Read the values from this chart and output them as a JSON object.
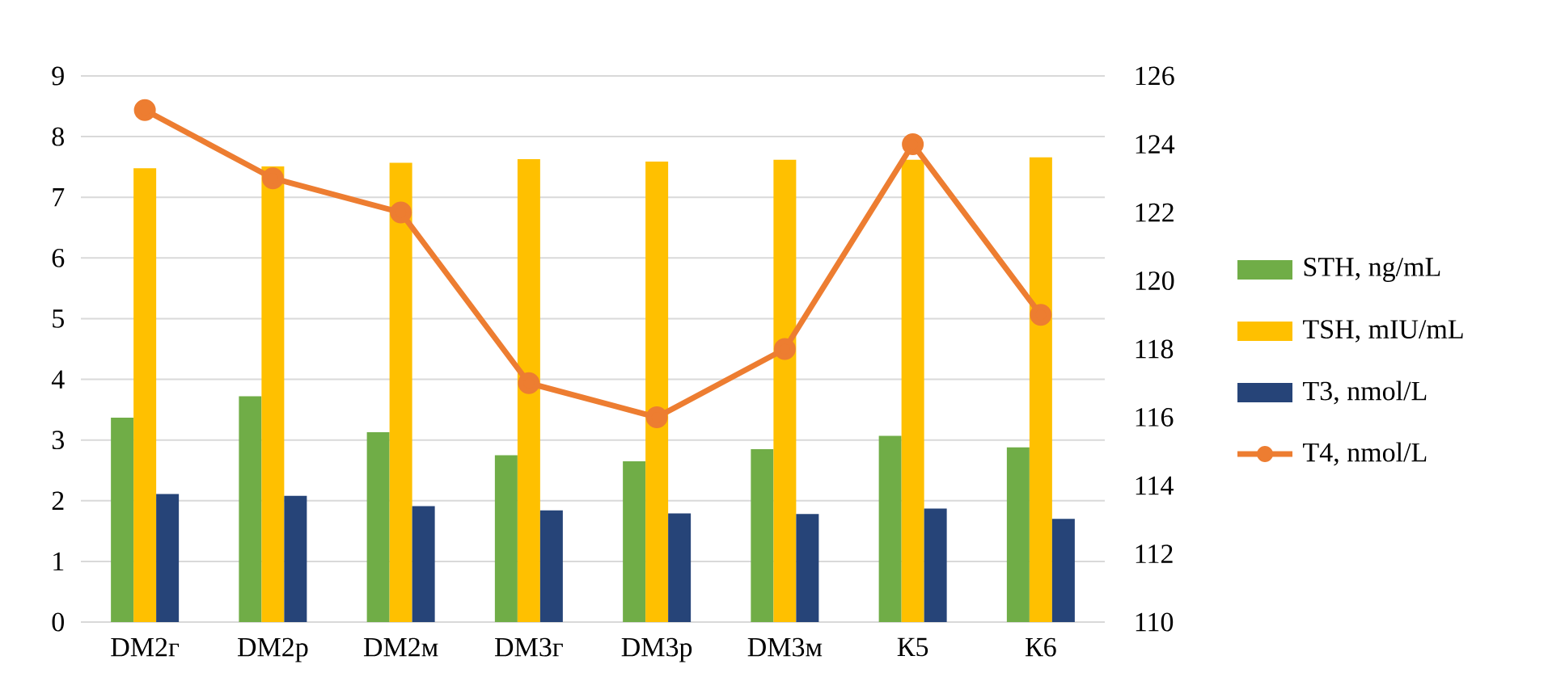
{
  "chart_data": {
    "type": "bar",
    "categories": [
      "DM2г",
      "DM2р",
      "DM2м",
      "DM3г",
      "DM3р",
      "DM3м",
      "К5",
      "К6"
    ],
    "series": [
      {
        "name": "STH, ng/mL",
        "color": "#70ad47",
        "values": [
          3.37,
          3.72,
          3.13,
          2.75,
          2.65,
          2.85,
          3.07,
          2.88
        ]
      },
      {
        "name": "TSH, mIU/mL",
        "color": "#ffc000",
        "values": [
          7.48,
          7.51,
          7.57,
          7.63,
          7.59,
          7.62,
          7.62,
          7.66
        ]
      },
      {
        "name": "T3, nmol/L",
        "color": "#264478",
        "values": [
          2.11,
          2.08,
          1.91,
          1.84,
          1.79,
          1.78,
          1.87,
          1.7
        ]
      },
      {
        "name": "T4, nmol/L",
        "color": "#ed7d31",
        "type": "line",
        "axis": "y2",
        "marker": "circle",
        "values": [
          125,
          123,
          122,
          117,
          116,
          118,
          124,
          119
        ]
      }
    ],
    "ylim": [
      0,
      9
    ],
    "yticks": [
      0,
      1,
      2,
      3,
      4,
      5,
      6,
      7,
      8,
      9
    ],
    "y2lim": [
      110,
      126
    ],
    "y2ticks": [
      110,
      112,
      114,
      116,
      118,
      120,
      122,
      124,
      126
    ],
    "grid": "y",
    "legend": "right"
  }
}
